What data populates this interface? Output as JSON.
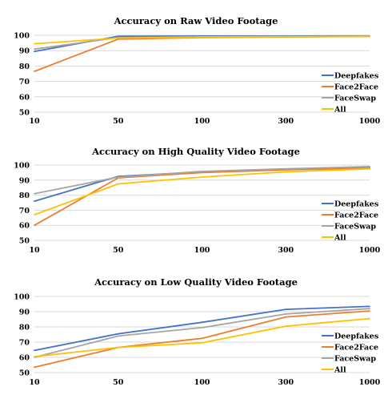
{
  "chart_data": [
    {
      "type": "line",
      "title": "Accuracy on Raw Video Footage",
      "categories": [
        "10",
        "50",
        "100",
        "300",
        "1000"
      ],
      "ylim": [
        50,
        100
      ],
      "yticks": [
        50,
        60,
        70,
        80,
        90,
        100
      ],
      "grid": true,
      "legend_position": "bottom-right",
      "series": [
        {
          "name": "Deepfakes",
          "color": "#4472c4",
          "values": [
            89.5,
            99.3,
            99.5,
            99.5,
            99.6
          ]
        },
        {
          "name": "Face2Face",
          "color": "#ed7d31",
          "values": [
            76.5,
            97.5,
            98.5,
            98.9,
            99.2
          ]
        },
        {
          "name": "FaceSwap",
          "color": "#a5a5a5",
          "values": [
            91.0,
            98.5,
            99.0,
            99.2,
            99.4
          ]
        },
        {
          "name": "All",
          "color": "#ffc000",
          "values": [
            94.5,
            98.2,
            98.8,
            99.0,
            99.3
          ]
        }
      ]
    },
    {
      "type": "line",
      "title": "Accuracy on High Quality Video Footage",
      "categories": [
        "10",
        "50",
        "100",
        "300",
        "1000"
      ],
      "ylim": [
        50,
        100
      ],
      "yticks": [
        50,
        60,
        70,
        80,
        90,
        100
      ],
      "grid": true,
      "legend_position": "bottom-right",
      "series": [
        {
          "name": "Deepfakes",
          "color": "#4472c4",
          "values": [
            76.0,
            92.5,
            95.5,
            97.0,
            98.5
          ]
        },
        {
          "name": "Face2Face",
          "color": "#ed7d31",
          "values": [
            60.0,
            91.5,
            95.0,
            96.8,
            98.0
          ]
        },
        {
          "name": "FaceSwap",
          "color": "#a5a5a5",
          "values": [
            81.0,
            92.0,
            95.8,
            97.5,
            99.0
          ]
        },
        {
          "name": "All",
          "color": "#ffc000",
          "values": [
            67.0,
            87.5,
            92.0,
            95.5,
            97.5
          ]
        }
      ]
    },
    {
      "type": "line",
      "title": "Accuracy on Low Quality Video Footage",
      "categories": [
        "10",
        "50",
        "100",
        "300",
        "1000"
      ],
      "ylim": [
        50,
        100
      ],
      "yticks": [
        50,
        60,
        70,
        80,
        90,
        100
      ],
      "grid": true,
      "legend_position": "bottom-right",
      "series": [
        {
          "name": "Deepfakes",
          "color": "#4472c4",
          "values": [
            64.5,
            75.5,
            83.0,
            91.5,
            93.5
          ]
        },
        {
          "name": "Face2Face",
          "color": "#ed7d31",
          "values": [
            53.5,
            66.5,
            72.5,
            86.5,
            90.5
          ]
        },
        {
          "name": "FaceSwap",
          "color": "#a5a5a5",
          "values": [
            60.0,
            74.0,
            79.5,
            88.5,
            92.0
          ]
        },
        {
          "name": "All",
          "color": "#ffc000",
          "values": [
            60.5,
            66.5,
            69.5,
            80.5,
            85.5
          ]
        }
      ]
    }
  ]
}
